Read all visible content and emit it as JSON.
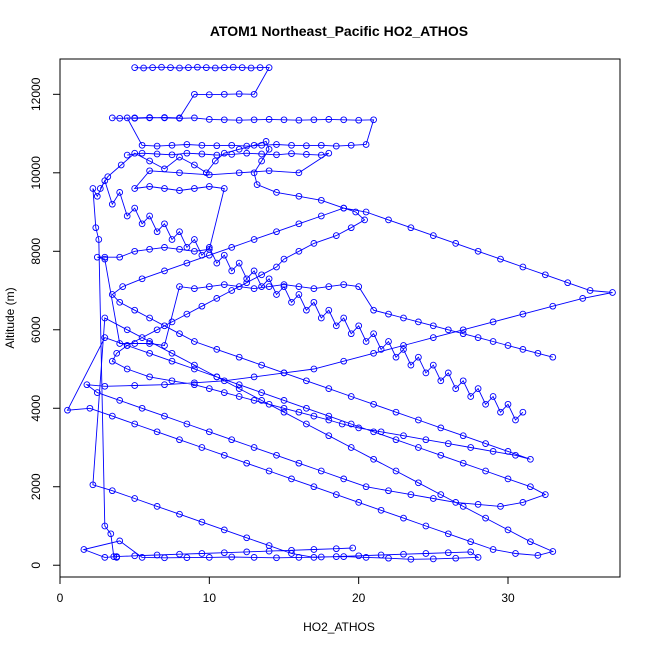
{
  "chart_data": {
    "type": "scatter",
    "title": "ATOM1 Northeast_Pacific HO2_ATHOS",
    "xlabel": "HO2_ATHOS",
    "ylabel": "Altitude (m)",
    "xlim": [
      0,
      37.5
    ],
    "ylim": [
      -300,
      12900
    ],
    "xticks": [
      0,
      10,
      20,
      30
    ],
    "yticks": [
      0,
      2000,
      4000,
      6000,
      8000,
      10000,
      12000
    ],
    "grid": false,
    "legend": "none",
    "series_color": "#0000ff",
    "marker": "open-circle",
    "connected": true,
    "series": [
      {
        "x": [
          2.7,
          3.2,
          4.1,
          5.0,
          6.0,
          7.0,
          8.0,
          9.0,
          9.8,
          10.4,
          11.0,
          12.0,
          13.0,
          13.8,
          14.0,
          13.5,
          13.0,
          13.2,
          14.5,
          16.0,
          17.5,
          19.0,
          19.8,
          20.4,
          19.5,
          18.5,
          17.0,
          16.0,
          15.0,
          14.5,
          13.5,
          12.5,
          11.5,
          10.5,
          9.5,
          8.5,
          7.5,
          6.5,
          5.5,
          4.5,
          3.8,
          3.5,
          4.5,
          6.0,
          7.5,
          9.0,
          10.0,
          11.0,
          12.0,
          13.0,
          14.0,
          15.0,
          16.0,
          17.0,
          18.0,
          18.9,
          20.0,
          21.5,
          23.0,
          24.5,
          26.0,
          27.5,
          29.0,
          30.5,
          31.5,
          30.0,
          28.5,
          27.0,
          25.5,
          24.0,
          22.5,
          21.0,
          19.5,
          18.0,
          16.5,
          15.0,
          13.5,
          12.0,
          10.5,
          9.0,
          8.0,
          7.0,
          6.0,
          5.0,
          4.0,
          3.5,
          4.2,
          5.5,
          7.0,
          8.5,
          10.0,
          11.5,
          13.0,
          14.5,
          16.0,
          17.5,
          19.0,
          20.5,
          22.0,
          23.5,
          25.0,
          26.5,
          28.0,
          29.5,
          31.0,
          32.5,
          34.0,
          35.5,
          37.0,
          35.0,
          33.0,
          31.0,
          29.0,
          27.0,
          25.0,
          23.0,
          21.0,
          19.0,
          17.0,
          15.0,
          13.0,
          11.0,
          9.0,
          7.0,
          5.0,
          3.0,
          1.8,
          2.5,
          4.0,
          5.5,
          7.0,
          8.5,
          10.0,
          11.5,
          13.0,
          14.5,
          16.0,
          17.5,
          19.0,
          20.5,
          22.0,
          23.5,
          25.0,
          26.5,
          28.0,
          29.5,
          31.0,
          32.5,
          31.5,
          30.0,
          28.5,
          27.0,
          25.5,
          24.0,
          22.5,
          21.0,
          19.5,
          18.0,
          16.5,
          15.0,
          13.5,
          12.0,
          10.5,
          9.0,
          7.5,
          6.0,
          4.5,
          3.0,
          0.5,
          2.0,
          3.5,
          5.0,
          6.5,
          8.0,
          9.5,
          11.0,
          12.5,
          14.0,
          15.5,
          17.0,
          18.5,
          20.0,
          21.5,
          23.0,
          24.5,
          26.0,
          27.5,
          29.0,
          30.5,
          32.0,
          33.0,
          31.5,
          30.0,
          28.5,
          27.0,
          25.5,
          24.0,
          22.5,
          21.0,
          19.5,
          18.0,
          16.5,
          15.0,
          13.5,
          12.0,
          10.5,
          9.0,
          7.5,
          6.0,
          4.5,
          3.0,
          2.2,
          3.5,
          5.0,
          6.5,
          8.0,
          9.5,
          11.0,
          12.5,
          14.0,
          15.5,
          17.0,
          18.5,
          20.0,
          21.5,
          23.0,
          24.5,
          26.0,
          27.5,
          28.0,
          26.5,
          25.0,
          23.5,
          22.0,
          20.5,
          19.0,
          17.5,
          16.0,
          14.5,
          13.0,
          11.5,
          10.0,
          8.5,
          7.0,
          5.5,
          4.0,
          1.6,
          3.0,
          3.8,
          5.0,
          6.5,
          8.0,
          9.5,
          11.0,
          12.5,
          14.0,
          15.5,
          17.0,
          18.5,
          19.6
        ],
        "y": [
          9600,
          9900,
          10200,
          10500,
          10300,
          10100,
          10400,
          10200,
          10000,
          10300,
          10500,
          10600,
          10700,
          10800,
          10600,
          10300,
          10000,
          9700,
          9500,
          9400,
          9300,
          9100,
          9000,
          8800,
          8600,
          8400,
          8200,
          8000,
          7800,
          7600,
          7400,
          7200,
          7000,
          6800,
          6600,
          6400,
          6200,
          6000,
          5800,
          5600,
          5400,
          5200,
          5000,
          4800,
          4700,
          4600,
          4500,
          4400,
          4300,
          4200,
          4100,
          4000,
          3900,
          3800,
          3700,
          3600,
          3500,
          3400,
          3300,
          3200,
          3100,
          3000,
          2900,
          2800,
          2700,
          2900,
          3100,
          3300,
          3500,
          3700,
          3900,
          4100,
          4300,
          4500,
          4700,
          4900,
          5100,
          5300,
          5500,
          5700,
          5900,
          6100,
          6300,
          6500,
          6700,
          6900,
          7100,
          7300,
          7500,
          7700,
          7900,
          8100,
          8300,
          8500,
          8700,
          8900,
          9100,
          9000,
          8800,
          8600,
          8400,
          8200,
          8000,
          7800,
          7600,
          7400,
          7200,
          7000,
          6950,
          6800,
          6600,
          6400,
          6200,
          6000,
          5800,
          5600,
          5400,
          5200,
          5000,
          4900,
          4800,
          4700,
          4650,
          4600,
          4580,
          4560,
          4600,
          4400,
          4200,
          4000,
          3800,
          3600,
          3400,
          3200,
          3000,
          2800,
          2600,
          2400,
          2200,
          2000,
          1900,
          1800,
          1700,
          1600,
          1550,
          1500,
          1600,
          1800,
          2000,
          2200,
          2400,
          2600,
          2800,
          3000,
          3200,
          3400,
          3600,
          3800,
          4000,
          4200,
          4400,
          4600,
          4800,
          5000,
          5200,
          5400,
          5600,
          5800,
          3950,
          4000,
          3800,
          3600,
          3400,
          3200,
          3000,
          2800,
          2600,
          2400,
          2200,
          2000,
          1800,
          1600,
          1400,
          1200,
          1000,
          800,
          600,
          400,
          300,
          250,
          350,
          600,
          900,
          1200,
          1500,
          1800,
          2100,
          2400,
          2700,
          3000,
          3300,
          3600,
          3900,
          4200,
          4500,
          4800,
          5100,
          5400,
          5700,
          6000,
          6300,
          2050,
          1900,
          1700,
          1500,
          1300,
          1100,
          900,
          700,
          500,
          300,
          200,
          220,
          240,
          260,
          280,
          300,
          320,
          340,
          200,
          180,
          160,
          150,
          180,
          200,
          220,
          210,
          200,
          190,
          200,
          210,
          200,
          195,
          190,
          200,
          620,
          400,
          200,
          220,
          240,
          260,
          280,
          300,
          320,
          340,
          360,
          380,
          400,
          420,
          440
        ]
      },
      {
        "x": [
          5.0,
          5.6,
          6.2,
          6.8,
          7.4,
          8.0,
          8.6,
          9.2,
          9.8,
          10.4,
          11.0,
          11.6,
          12.2,
          12.8,
          13.4,
          14.0,
          13.0,
          12.0,
          11.0,
          10.0,
          9.0,
          8.0,
          7.0,
          6.0,
          5.0,
          4.5,
          5.5,
          6.5,
          7.5,
          8.5,
          9.5,
          10.5,
          11.5,
          12.5,
          13.5,
          14.5,
          15.5,
          16.5,
          17.5,
          18.5,
          19.5,
          20.5,
          21.0,
          20.0,
          19.0,
          18.0,
          17.0,
          16.0,
          15.0,
          14.0,
          13.0,
          12.0,
          11.0,
          10.0,
          9.0,
          8.0,
          7.0,
          6.0,
          5.0,
          4.0,
          3.5
        ],
        "y": [
          12680,
          12670,
          12680,
          12690,
          12680,
          12670,
          12680,
          12690,
          12680,
          12670,
          12680,
          12690,
          12680,
          12670,
          12680,
          12680,
          12000,
          12010,
          12000,
          11990,
          12000,
          11400,
          11410,
          11400,
          11390,
          11400,
          10700,
          10680,
          10700,
          10720,
          10700,
          10690,
          10700,
          10680,
          10700,
          10720,
          10700,
          10690,
          10700,
          10680,
          10700,
          10720,
          11350,
          11340,
          11350,
          11360,
          11350,
          11340,
          11350,
          11360,
          11350,
          11340,
          11350,
          11360,
          11400,
          11390,
          11400,
          11410,
          11400,
          11390,
          11400
        ]
      },
      {
        "x": [
          3.8,
          3.6,
          3.4,
          3.0,
          2.6,
          2.4,
          2.2,
          2.5,
          3.0,
          3.5,
          4.0,
          4.5,
          5.0,
          5.5,
          6.0,
          6.5,
          7.0,
          7.5,
          8.0,
          8.5,
          9.0,
          9.5,
          10.0,
          10.5,
          11.0,
          11.5,
          12.0,
          12.5,
          13.0,
          13.5,
          14.0,
          14.5,
          15.0,
          15.5,
          16.0,
          16.5,
          17.0,
          17.5,
          18.0,
          18.5,
          19.0,
          19.5,
          20.0,
          20.5,
          21.0,
          21.5,
          22.0,
          22.5,
          23.0,
          23.5,
          24.0,
          24.5,
          25.0,
          25.5,
          26.0,
          26.5,
          27.0,
          27.5,
          28.0,
          28.5,
          29.0,
          29.5,
          30.0,
          30.5,
          31.0
        ],
        "y": [
          200,
          220,
          800,
          1000,
          8300,
          8600,
          9600,
          9400,
          9800,
          9200,
          9500,
          8900,
          9100,
          8700,
          8900,
          8500,
          8700,
          8300,
          8500,
          8100,
          8300,
          7900,
          8100,
          7700,
          7900,
          7500,
          7700,
          7300,
          7500,
          7100,
          7300,
          6900,
          7100,
          6700,
          6900,
          6500,
          6700,
          6300,
          6500,
          6100,
          6300,
          5900,
          6100,
          5700,
          5900,
          5500,
          5700,
          5300,
          5500,
          5100,
          5300,
          4900,
          5100,
          4700,
          4900,
          4500,
          4700,
          4300,
          4500,
          4100,
          4300,
          3900,
          4100,
          3700,
          3900
        ]
      },
      {
        "x": [
          4.5,
          5.5,
          6.5,
          7.5,
          8.5,
          9.5,
          10.5,
          11.5,
          12.5,
          13.5,
          14.5,
          15.5,
          16.5,
          17.5,
          18.0,
          16.0,
          14.0,
          12.0,
          10.0,
          8.0,
          6.0,
          5.0,
          6.0,
          7.0,
          8.0,
          9.0,
          10.0,
          11.0,
          10.0,
          9.0,
          8.0,
          7.0,
          6.0,
          5.0,
          4.0,
          3.0,
          2.5,
          3.0,
          4.0,
          5.0,
          6.0,
          7.0,
          8.0,
          9.0,
          10.0,
          11.0,
          12.0,
          13.0,
          14.0,
          15.0,
          16.0,
          17.0,
          18.0,
          19.0,
          20.0,
          21.0,
          22.0,
          23.0,
          24.0,
          25.0,
          26.0,
          27.0,
          28.0,
          29.0,
          30.0,
          31.0,
          32.0,
          33.0
        ],
        "y": [
          10450,
          10500,
          10480,
          10460,
          10500,
          10480,
          10450,
          10470,
          10500,
          10480,
          10460,
          10490,
          10470,
          10450,
          10500,
          10000,
          10050,
          10000,
          9950,
          10000,
          10050,
          9600,
          9650,
          9600,
          9550,
          9600,
          9650,
          9600,
          8050,
          8000,
          8050,
          8100,
          8050,
          8000,
          7850,
          7850,
          7850,
          7800,
          5650,
          5650,
          5650,
          5600,
          7100,
          7050,
          7100,
          7150,
          7100,
          7050,
          7100,
          7150,
          7100,
          7050,
          7100,
          7150,
          7100,
          6500,
          6400,
          6300,
          6200,
          6100,
          6000,
          5900,
          5800,
          5700,
          5600,
          5500,
          5400,
          5300
        ]
      }
    ]
  }
}
